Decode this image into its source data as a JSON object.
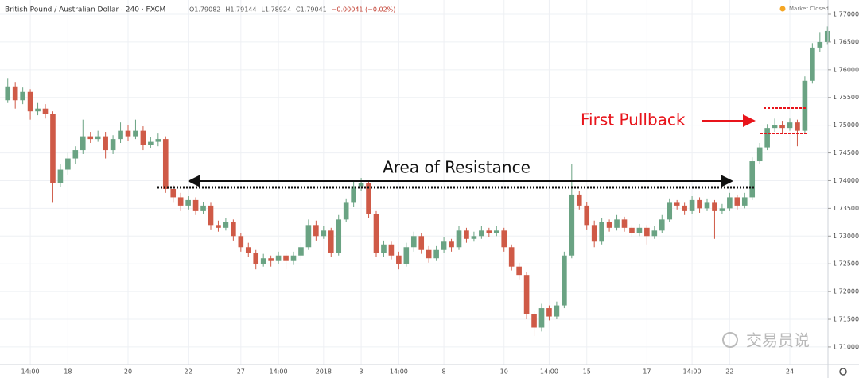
{
  "chart_data": {
    "type": "candlestick",
    "title": "British Pound / Australian Dollar · 240 · FXCM",
    "legend_values": [
      "O1.79082",
      "H1.79144",
      "L1.78924",
      "C1.79041",
      "−0.00041 (−0.02%)"
    ],
    "status": "Market Closed",
    "annotations": [
      "Area of Resistance",
      "First Pullback"
    ],
    "watermark": "交易员说",
    "up_color": "#6aa383",
    "down_color": "#cf5a47",
    "grid": true,
    "ylim": [
      1.70684,
      1.77258
    ],
    "yticks": [
      {
        "value": 1.71,
        "label": "1.71000"
      },
      {
        "value": 1.715,
        "label": "1.71500"
      },
      {
        "value": 1.72,
        "label": "1.72000"
      },
      {
        "value": 1.725,
        "label": "1.72500"
      },
      {
        "value": 1.73,
        "label": "1.73000"
      },
      {
        "value": 1.735,
        "label": "1.73500"
      },
      {
        "value": 1.74,
        "label": "1.74000"
      },
      {
        "value": 1.745,
        "label": "1.74500"
      },
      {
        "value": 1.75,
        "label": "1.75000"
      },
      {
        "value": 1.755,
        "label": "1.75500"
      },
      {
        "value": 1.76,
        "label": "1.76000"
      },
      {
        "value": 1.765,
        "label": "1.76500"
      },
      {
        "value": 1.77,
        "label": "1.77000"
      }
    ],
    "categories": [
      null,
      null,
      null,
      "14:00",
      null,
      null,
      null,
      null,
      "18",
      null,
      null,
      null,
      null,
      null,
      null,
      null,
      "20",
      null,
      null,
      null,
      null,
      null,
      null,
      null,
      "22",
      null,
      null,
      null,
      null,
      null,
      null,
      "27",
      null,
      null,
      null,
      null,
      "14:00",
      null,
      null,
      null,
      null,
      null,
      "2018",
      null,
      null,
      null,
      null,
      "3",
      null,
      null,
      null,
      null,
      "14:00",
      null,
      null,
      null,
      null,
      null,
      "8",
      null,
      null,
      null,
      null,
      null,
      null,
      null,
      "10",
      null,
      null,
      null,
      null,
      null,
      "14:00",
      null,
      null,
      null,
      null,
      "15",
      null,
      null,
      null,
      null,
      null,
      null,
      null,
      "17",
      null,
      null,
      null,
      null,
      null,
      "14:00",
      null,
      null,
      null,
      null,
      "22",
      null,
      null,
      null,
      null,
      null,
      null,
      null,
      "24",
      null,
      null,
      null,
      null,
      null
    ],
    "ohlc": [
      [
        1.7545,
        1.7585,
        1.754,
        1.757
      ],
      [
        1.757,
        1.7578,
        1.753,
        1.7545
      ],
      [
        1.7545,
        1.7568,
        1.7538,
        1.756
      ],
      [
        1.756,
        1.7565,
        1.751,
        1.7525
      ],
      [
        1.7525,
        1.754,
        1.7518,
        1.753
      ],
      [
        1.753,
        1.7538,
        1.7512,
        1.752
      ],
      [
        1.752,
        1.7525,
        1.736,
        1.7395
      ],
      [
        1.7395,
        1.743,
        1.7388,
        1.742
      ],
      [
        1.742,
        1.745,
        1.741,
        1.744
      ],
      [
        1.744,
        1.7462,
        1.743,
        1.7455
      ],
      [
        1.7455,
        1.751,
        1.7448,
        1.748
      ],
      [
        1.748,
        1.7488,
        1.7468,
        1.7475
      ],
      [
        1.7475,
        1.749,
        1.747,
        1.748
      ],
      [
        1.748,
        1.7488,
        1.744,
        1.7455
      ],
      [
        1.7455,
        1.7482,
        1.7448,
        1.7475
      ],
      [
        1.7475,
        1.7505,
        1.7468,
        1.749
      ],
      [
        1.749,
        1.75,
        1.7472,
        1.748
      ],
      [
        1.748,
        1.751,
        1.7475,
        1.749
      ],
      [
        1.749,
        1.7498,
        1.7455,
        1.7465
      ],
      [
        1.7465,
        1.7478,
        1.7458,
        1.747
      ],
      [
        1.747,
        1.7485,
        1.7462,
        1.7475
      ],
      [
        1.7475,
        1.748,
        1.7378,
        1.7385
      ],
      [
        1.7385,
        1.7392,
        1.736,
        1.737
      ],
      [
        1.737,
        1.7378,
        1.7345,
        1.7355
      ],
      [
        1.7355,
        1.7372,
        1.7348,
        1.7365
      ],
      [
        1.7365,
        1.737,
        1.7338,
        1.7345
      ],
      [
        1.7345,
        1.7362,
        1.734,
        1.7355
      ],
      [
        1.7355,
        1.736,
        1.7312,
        1.732
      ],
      [
        1.732,
        1.7328,
        1.7308,
        1.7315
      ],
      [
        1.7315,
        1.7332,
        1.731,
        1.7325
      ],
      [
        1.7325,
        1.733,
        1.7292,
        1.73
      ],
      [
        1.73,
        1.7305,
        1.7272,
        1.728
      ],
      [
        1.728,
        1.7288,
        1.7262,
        1.727
      ],
      [
        1.727,
        1.7275,
        1.724,
        1.725
      ],
      [
        1.725,
        1.7268,
        1.7245,
        1.726
      ],
      [
        1.726,
        1.7265,
        1.7245,
        1.7255
      ],
      [
        1.7255,
        1.7272,
        1.725,
        1.7265
      ],
      [
        1.7265,
        1.727,
        1.724,
        1.7255
      ],
      [
        1.7255,
        1.7272,
        1.7248,
        1.7265
      ],
      [
        1.7265,
        1.7288,
        1.7258,
        1.728
      ],
      [
        1.728,
        1.733,
        1.7275,
        1.732
      ],
      [
        1.732,
        1.7328,
        1.7292,
        1.73
      ],
      [
        1.73,
        1.7318,
        1.7295,
        1.731
      ],
      [
        1.731,
        1.7315,
        1.7262,
        1.727
      ],
      [
        1.727,
        1.7338,
        1.7265,
        1.733
      ],
      [
        1.733,
        1.7368,
        1.7325,
        1.736
      ],
      [
        1.736,
        1.7398,
        1.7352,
        1.739
      ],
      [
        1.739,
        1.7405,
        1.7382,
        1.7395
      ],
      [
        1.7395,
        1.74,
        1.7332,
        1.734
      ],
      [
        1.734,
        1.7345,
        1.7262,
        1.727
      ],
      [
        1.727,
        1.7292,
        1.7262,
        1.7285
      ],
      [
        1.7285,
        1.729,
        1.7258,
        1.7265
      ],
      [
        1.7265,
        1.7272,
        1.724,
        1.725
      ],
      [
        1.725,
        1.7288,
        1.7245,
        1.728
      ],
      [
        1.728,
        1.7308,
        1.7272,
        1.73
      ],
      [
        1.73,
        1.7305,
        1.7268,
        1.7275
      ],
      [
        1.7275,
        1.7282,
        1.7252,
        1.726
      ],
      [
        1.726,
        1.7282,
        1.7255,
        1.7275
      ],
      [
        1.7275,
        1.7298,
        1.727,
        1.729
      ],
      [
        1.729,
        1.7295,
        1.7272,
        1.728
      ],
      [
        1.728,
        1.7318,
        1.7275,
        1.731
      ],
      [
        1.731,
        1.7315,
        1.7288,
        1.7295
      ],
      [
        1.7295,
        1.7308,
        1.729,
        1.73
      ],
      [
        1.73,
        1.7318,
        1.7295,
        1.731
      ],
      [
        1.731,
        1.7315,
        1.7298,
        1.7305
      ],
      [
        1.7305,
        1.7318,
        1.73,
        1.731
      ],
      [
        1.731,
        1.7315,
        1.7272,
        1.728
      ],
      [
        1.728,
        1.7285,
        1.7238,
        1.7245
      ],
      [
        1.7245,
        1.7252,
        1.7222,
        1.723
      ],
      [
        1.723,
        1.7235,
        1.715,
        1.716
      ],
      [
        1.716,
        1.7165,
        1.712,
        1.7135
      ],
      [
        1.7135,
        1.7178,
        1.7128,
        1.717
      ],
      [
        1.717,
        1.7175,
        1.7148,
        1.7155
      ],
      [
        1.7155,
        1.7182,
        1.715,
        1.7175
      ],
      [
        1.7175,
        1.7272,
        1.717,
        1.7265
      ],
      [
        1.7265,
        1.743,
        1.726,
        1.7375
      ],
      [
        1.7375,
        1.7382,
        1.7348,
        1.7355
      ],
      [
        1.7355,
        1.7362,
        1.7312,
        1.732
      ],
      [
        1.732,
        1.7328,
        1.728,
        1.729
      ],
      [
        1.729,
        1.7332,
        1.7285,
        1.7325
      ],
      [
        1.7325,
        1.733,
        1.7308,
        1.7315
      ],
      [
        1.7315,
        1.7338,
        1.731,
        1.733
      ],
      [
        1.733,
        1.7335,
        1.7308,
        1.7315
      ],
      [
        1.7315,
        1.732,
        1.7298,
        1.7305
      ],
      [
        1.7305,
        1.7322,
        1.73,
        1.7315
      ],
      [
        1.7315,
        1.732,
        1.7285,
        1.73
      ],
      [
        1.73,
        1.7318,
        1.7295,
        1.731
      ],
      [
        1.731,
        1.7338,
        1.7305,
        1.733
      ],
      [
        1.733,
        1.7368,
        1.7325,
        1.736
      ],
      [
        1.736,
        1.7365,
        1.7348,
        1.7355
      ],
      [
        1.7355,
        1.736,
        1.7338,
        1.7345
      ],
      [
        1.7345,
        1.7372,
        1.734,
        1.7365
      ],
      [
        1.7365,
        1.737,
        1.7342,
        1.735
      ],
      [
        1.735,
        1.7368,
        1.7345,
        1.736
      ],
      [
        1.736,
        1.7365,
        1.7295,
        1.7345
      ],
      [
        1.7345,
        1.7358,
        1.734,
        1.735
      ],
      [
        1.735,
        1.7378,
        1.7345,
        1.737
      ],
      [
        1.737,
        1.7375,
        1.7348,
        1.7355
      ],
      [
        1.7355,
        1.7378,
        1.735,
        1.737
      ],
      [
        1.737,
        1.7442,
        1.7365,
        1.7435
      ],
      [
        1.7435,
        1.7468,
        1.743,
        1.746
      ],
      [
        1.746,
        1.7502,
        1.7455,
        1.7495
      ],
      [
        1.7495,
        1.7512,
        1.7488,
        1.75
      ],
      [
        1.75,
        1.7508,
        1.7485,
        1.7495
      ],
      [
        1.7495,
        1.7512,
        1.749,
        1.7505
      ],
      [
        1.7505,
        1.751,
        1.7462,
        1.749
      ],
      [
        1.749,
        1.7588,
        1.7485,
        1.758
      ],
      [
        1.758,
        1.7648,
        1.7575,
        1.764
      ],
      [
        1.764,
        1.7668,
        1.7632,
        1.765
      ],
      [
        1.765,
        1.7678,
        1.7645,
        1.767
      ]
    ]
  }
}
